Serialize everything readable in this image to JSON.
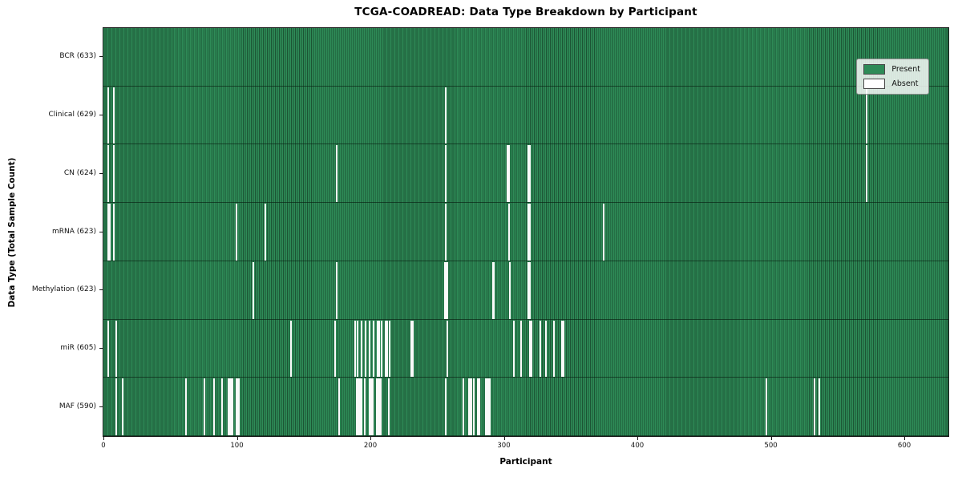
{
  "title": "TCGA-COADREAD: Data Type Breakdown by Participant",
  "legend": {
    "present_label": "Present",
    "absent_label": "Absent"
  },
  "colors": {
    "present_fill": "#2e8b57",
    "present_edge": "#1c5434",
    "absent_fill": "#fafafa",
    "row_divider": "#10321e",
    "axis": "#1a1a1a"
  },
  "chart_data": {
    "type": "heatmap",
    "title": "TCGA-COADREAD: Data Type Breakdown by Participant",
    "xlabel": "Participant",
    "ylabel": "Data Type (Total Sample Count)",
    "legend": [
      "Present",
      "Absent"
    ],
    "legend_position": "upper right",
    "n_participants": 633,
    "xlim": [
      0,
      633
    ],
    "x_ticks": [
      0,
      100,
      200,
      300,
      400,
      500,
      600
    ],
    "rows": [
      {
        "data_type": "BCR",
        "label": "BCR (633)",
        "present_count": 633,
        "absent_participants": []
      },
      {
        "data_type": "Clinical",
        "label": "Clinical (629)",
        "present_count": 629,
        "absent_participants": [
          3,
          7,
          256,
          571
        ]
      },
      {
        "data_type": "CN",
        "label": "CN (624)",
        "present_count": 624,
        "absent_participants": [
          3,
          7,
          174,
          256,
          302,
          303,
          318,
          319,
          571
        ]
      },
      {
        "data_type": "mRNA",
        "label": "mRNA (623)",
        "present_count": 623,
        "absent_participants": [
          3,
          4,
          7,
          99,
          121,
          256,
          303,
          318,
          319,
          374
        ]
      },
      {
        "data_type": "Methylation",
        "label": "Methylation (623)",
        "present_count": 623,
        "absent_participants": [
          112,
          174,
          255,
          256,
          257,
          291,
          292,
          304,
          318,
          319
        ]
      },
      {
        "data_type": "miR",
        "label": "miR (605)",
        "present_count": 605,
        "absent_participants": [
          3,
          9,
          140,
          173,
          188,
          190,
          193,
          196,
          199,
          202,
          205,
          206,
          208,
          211,
          212,
          214,
          230,
          231,
          257,
          307,
          312,
          319,
          320,
          327,
          331,
          337,
          343,
          344
        ]
      },
      {
        "data_type": "MAF",
        "label": "MAF (590)",
        "present_count": 590,
        "absent_participants": [
          9,
          14,
          61,
          75,
          82,
          88,
          93,
          94,
          95,
          96,
          99,
          100,
          101,
          176,
          189,
          190,
          191,
          192,
          193,
          195,
          199,
          200,
          201,
          204,
          205,
          206,
          207,
          213,
          256,
          269,
          273,
          274,
          275,
          277,
          280,
          281,
          286,
          287,
          288,
          289,
          496,
          532,
          536
        ]
      }
    ]
  }
}
